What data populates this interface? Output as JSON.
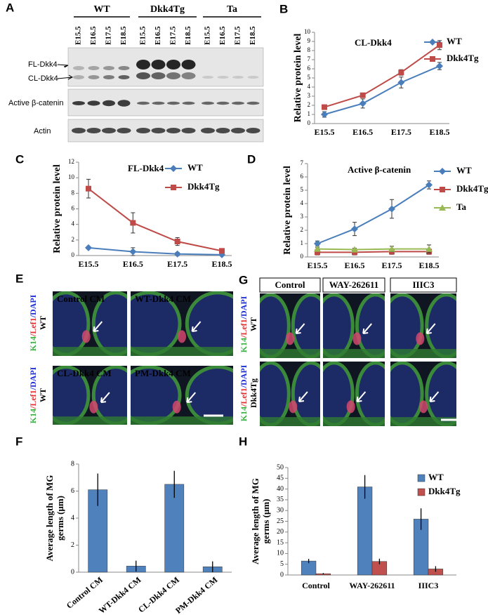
{
  "figure": {
    "panels": [
      "A",
      "B",
      "C",
      "D",
      "E",
      "F",
      "G",
      "H"
    ],
    "blot": {
      "groups": [
        "WT",
        "Dkk4Tg",
        "Ta"
      ],
      "lanes": [
        "E15.5",
        "E16.5",
        "E17.5",
        "E18.5",
        "E15.5",
        "E16.5",
        "E17.5",
        "E18.5",
        "E15.5",
        "E16.5",
        "E17.5",
        "E18.5"
      ],
      "rows": [
        "FL-Dkk4",
        "CL-Dkk4",
        "Active β-catenin",
        "Actin"
      ]
    },
    "panel_e": {
      "images": [
        "Control CM",
        "WT-Dkk4 CM",
        "CL-Dkk4 CM",
        "PM-Dkk4 CM"
      ],
      "stain": [
        "K14",
        "/Lef1",
        "/DAPI"
      ],
      "genotype": "WT"
    },
    "panel_g": {
      "columns": [
        "Control",
        "WAY-262611",
        "IIIC3"
      ],
      "stain": [
        "K14",
        "/Lef1",
        "/DAPI"
      ],
      "rows": [
        "WT",
        "Dkk4Tg"
      ]
    }
  },
  "chart_data": [
    {
      "type": "line",
      "title": "CL-Dkk4",
      "y_label": "Relative protein level",
      "categories": [
        "E15.5",
        "E16.5",
        "E17.5",
        "E18.5"
      ],
      "ylim": [
        0,
        10
      ],
      "yticks": [
        0,
        1,
        2,
        3,
        4,
        5,
        6,
        7,
        8,
        9,
        10
      ],
      "legend": "upper-right",
      "series": [
        {
          "name": "WT",
          "color": "#4a7ebb",
          "marker": "diamond",
          "values": [
            1.0,
            2.2,
            4.5,
            6.3
          ],
          "errors": [
            0.3,
            0.5,
            0.6,
            0.4
          ]
        },
        {
          "name": "Dkk4Tg",
          "color": "#be4b48",
          "marker": "square",
          "values": [
            1.8,
            3.1,
            5.6,
            8.6
          ],
          "errors": [
            0.1,
            0.2,
            0.3,
            0.5
          ]
        }
      ]
    },
    {
      "type": "line",
      "title": "FL-Dkk4",
      "y_label": "Relative protein level",
      "categories": [
        "E15.5",
        "E16.5",
        "E17.5",
        "E18.5"
      ],
      "ylim": [
        0,
        12
      ],
      "yticks": [
        0,
        2,
        4,
        6,
        8,
        10,
        12
      ],
      "legend": "upper-right",
      "series": [
        {
          "name": "WT",
          "color": "#4a7ebb",
          "marker": "diamond",
          "values": [
            1.0,
            0.5,
            0.2,
            0.1
          ],
          "errors": [
            0.1,
            0.5,
            0.2,
            0.1
          ]
        },
        {
          "name": "Dkk4Tg",
          "color": "#be4b48",
          "marker": "square",
          "values": [
            8.6,
            4.2,
            1.8,
            0.6
          ],
          "errors": [
            1.2,
            1.3,
            0.5,
            0.2
          ]
        }
      ]
    },
    {
      "type": "line",
      "title": "Active β-catenin",
      "y_label": "Relative protein level",
      "categories": [
        "E15.5",
        "E16.5",
        "E17.5",
        "E18.5"
      ],
      "ylim": [
        0,
        7
      ],
      "yticks": [
        0,
        1,
        2,
        3,
        4,
        5,
        6,
        7
      ],
      "legend": "upper-right",
      "series": [
        {
          "name": "WT",
          "color": "#4a7ebb",
          "marker": "diamond",
          "values": [
            1.0,
            2.1,
            3.6,
            5.4
          ],
          "errors": [
            0.2,
            0.5,
            0.7,
            0.3
          ]
        },
        {
          "name": "Dkk4Tg",
          "color": "#be4b48",
          "marker": "square",
          "values": [
            0.35,
            0.35,
            0.4,
            0.4
          ],
          "errors": [
            0.2,
            0.2,
            0.2,
            0.2
          ]
        },
        {
          "name": "Ta",
          "color": "#98b954",
          "marker": "triangle",
          "values": [
            0.6,
            0.55,
            0.6,
            0.6
          ],
          "errors": [
            0.1,
            0.1,
            0.2,
            0.3
          ]
        }
      ]
    },
    {
      "type": "bar",
      "y_label": [
        "Average length of MG",
        "germs (μm)"
      ],
      "categories": [
        "Control CM",
        "WT-Dkk4 CM",
        "CL-Dkk4 CM",
        "PM-Dkk4 CM"
      ],
      "ylim": [
        0,
        8
      ],
      "yticks": [
        0,
        2,
        4,
        6,
        8
      ],
      "series": [
        {
          "color": "#4f81bd",
          "values": [
            6.1,
            0.45,
            6.5,
            0.4
          ],
          "errors": [
            1.2,
            0.4,
            1.0,
            0.4
          ]
        }
      ]
    },
    {
      "type": "bar",
      "y_label": [
        "Average length of MG",
        "germs (μm)"
      ],
      "legend": "upper-right",
      "categories": [
        "Control",
        "WAY-262611",
        "IIIC3"
      ],
      "ylim": [
        0,
        50
      ],
      "yticks": [
        0,
        5,
        10,
        15,
        20,
        25,
        30,
        35,
        40,
        45,
        50
      ],
      "series": [
        {
          "name": "WT",
          "color": "#4f81bd",
          "values": [
            6.5,
            41,
            26
          ],
          "errors": [
            1.0,
            5.5,
            5.0
          ]
        },
        {
          "name": "Dkk4Tg",
          "color": "#c0504d",
          "values": [
            0.6,
            6.3,
            2.8
          ],
          "errors": [
            0.3,
            1.3,
            1.3
          ]
        }
      ]
    }
  ]
}
